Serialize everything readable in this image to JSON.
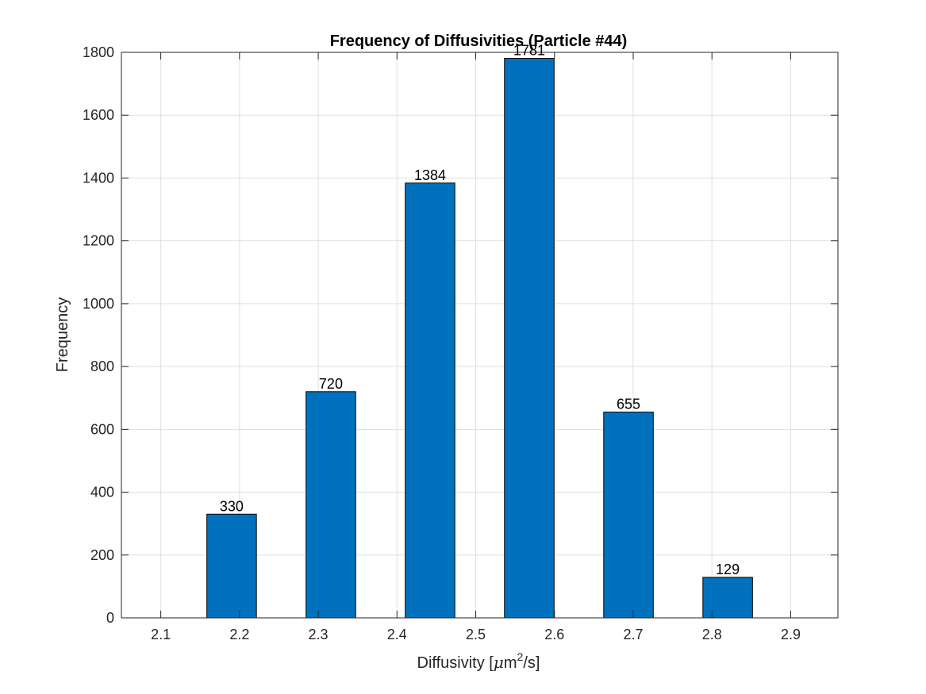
{
  "chart_data": {
    "type": "bar",
    "title": "Frequency of Diffusivities (Particle #44)",
    "xlabel": {
      "prefix": "Diffusivity [",
      "mu": "μ",
      "unit": "m",
      "exponent": "2",
      "suffix": "/s]"
    },
    "ylabel": "Frequency",
    "xlim": [
      2.05,
      2.96
    ],
    "ylim": [
      0,
      1800
    ],
    "xticks": [
      2.1,
      2.2,
      2.3,
      2.4,
      2.5,
      2.6,
      2.7,
      2.8,
      2.9
    ],
    "xtick_labels": [
      "2.1",
      "2.2",
      "2.3",
      "2.4",
      "2.5",
      "2.6",
      "2.7",
      "2.8",
      "2.9"
    ],
    "yticks": [
      0,
      200,
      400,
      600,
      800,
      1000,
      1200,
      1400,
      1600,
      1800
    ],
    "ytick_labels": [
      "0",
      "200",
      "400",
      "600",
      "800",
      "1000",
      "1200",
      "1400",
      "1600",
      "1800"
    ],
    "grid": true,
    "bar_color": "#0072BD",
    "bars": [
      {
        "x": 2.19,
        "width": 0.063,
        "value": 330,
        "label": "330"
      },
      {
        "x": 2.316,
        "width": 0.063,
        "value": 720,
        "label": "720"
      },
      {
        "x": 2.442,
        "width": 0.063,
        "value": 1384,
        "label": "1384"
      },
      {
        "x": 2.568,
        "width": 0.063,
        "value": 1781,
        "label": "1781"
      },
      {
        "x": 2.694,
        "width": 0.063,
        "value": 655,
        "label": "655"
      },
      {
        "x": 2.82,
        "width": 0.063,
        "value": 129,
        "label": "129"
      }
    ]
  }
}
